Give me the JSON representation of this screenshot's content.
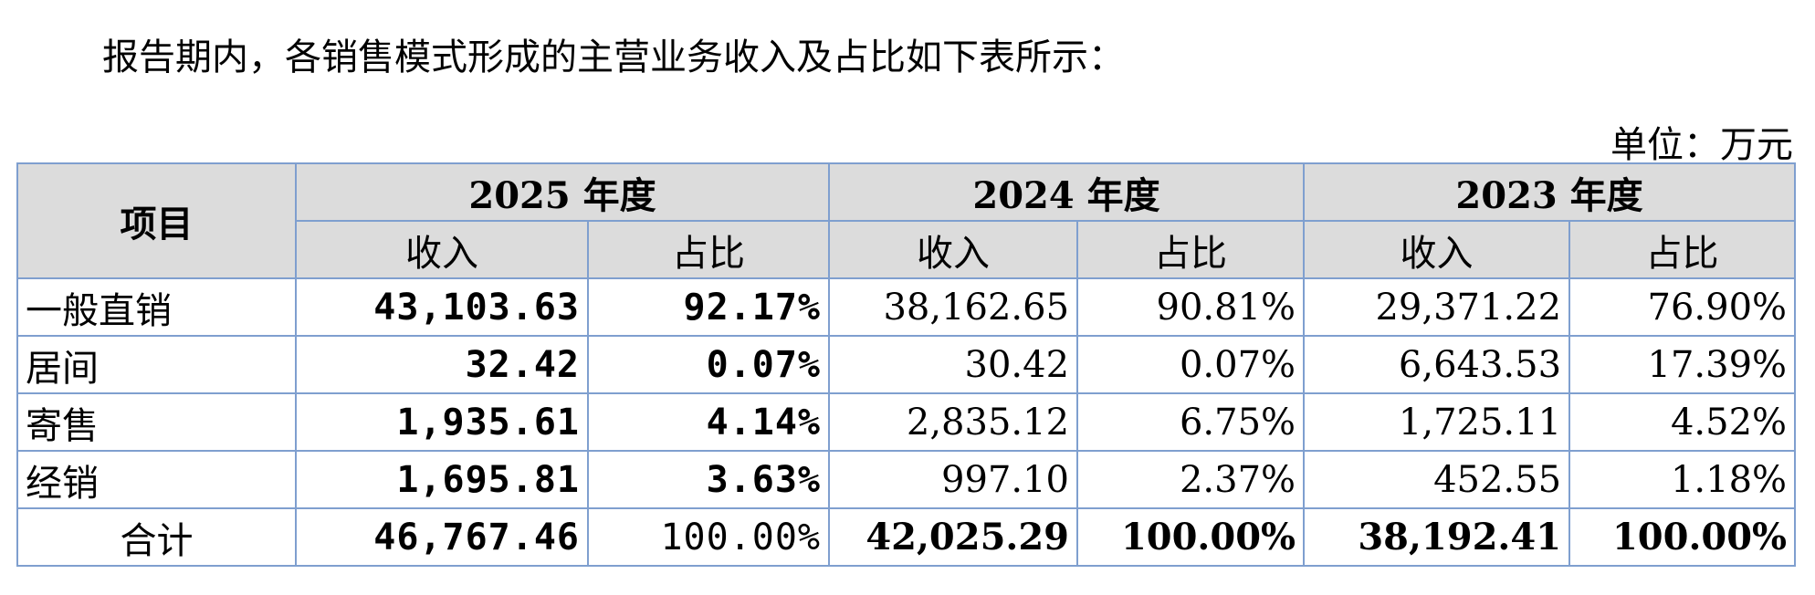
{
  "intro": "报告期内，各销售模式形成的主营业务收入及占比如下表所示：",
  "unit": "单位：万元",
  "table": {
    "corner": "项目",
    "years": [
      "2025 年度",
      "2024 年度",
      "2023 年度"
    ],
    "subheaders": [
      "收入",
      "占比",
      "收入",
      "占比",
      "收入",
      "占比"
    ],
    "rows": [
      {
        "label": "一般直销",
        "cells": [
          "43,103.63",
          "92.17%",
          "38,162.65",
          "90.81%",
          "29,371.22",
          "76.90%"
        ]
      },
      {
        "label": "居间",
        "cells": [
          "32.42",
          "0.07%",
          "30.42",
          "0.07%",
          "6,643.53",
          "17.39%"
        ]
      },
      {
        "label": "寄售",
        "cells": [
          "1,935.61",
          "4.14%",
          "2,835.12",
          "6.75%",
          "1,725.11",
          "4.52%"
        ]
      },
      {
        "label": "经销",
        "cells": [
          "1,695.81",
          "3.63%",
          "997.10",
          "2.37%",
          "452.55",
          "1.18%"
        ]
      },
      {
        "label": "合计",
        "cells": [
          "46,767.46",
          "100.00%",
          "42,025.29",
          "100.00%",
          "38,192.41",
          "100.00%"
        ]
      }
    ]
  }
}
